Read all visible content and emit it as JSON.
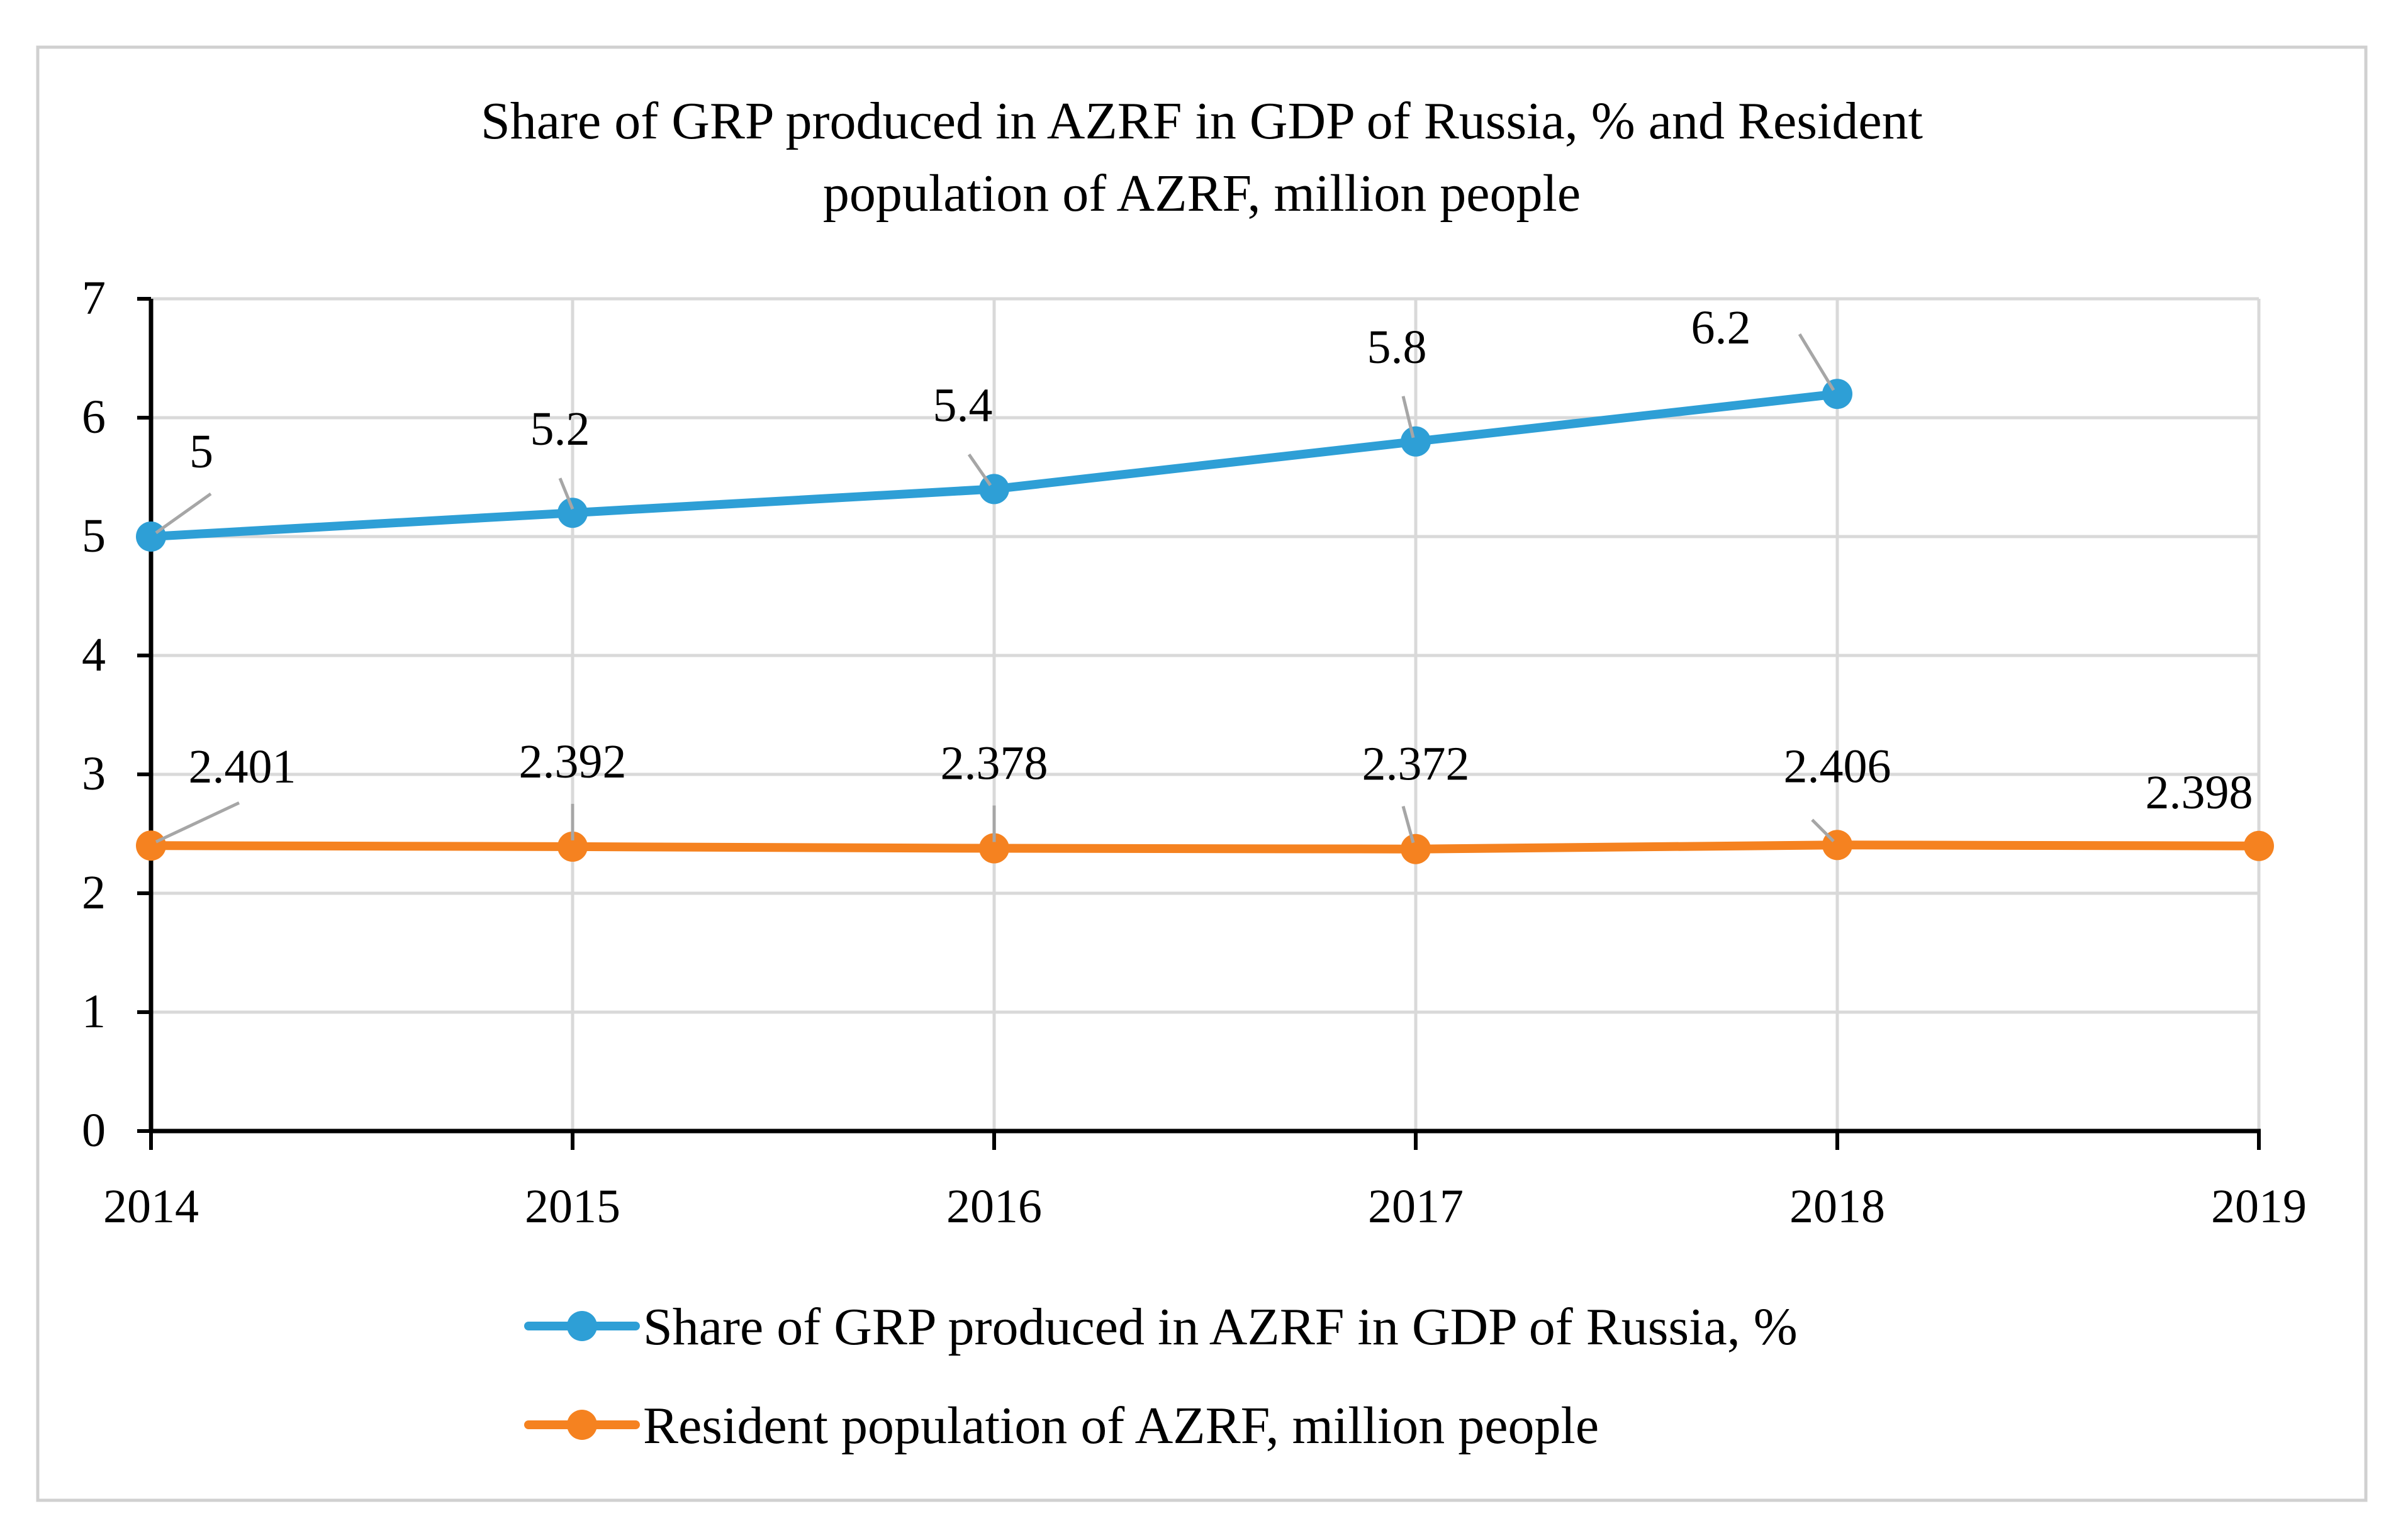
{
  "chart_data": {
    "type": "line",
    "title": "Share of GRP produced in AZRF in GDP of Russia, % and Resident population of AZRF, million people",
    "title_lines": [
      "Share of GRP produced in AZRF in GDP of Russia, % and Resident",
      "population of AZRF, million people"
    ],
    "x": [
      "2014",
      "2015",
      "2016",
      "2017",
      "2018",
      "2019"
    ],
    "y_ticks": [
      "0",
      "1",
      "2",
      "3",
      "4",
      "5",
      "6",
      "7"
    ],
    "ylim": [
      0,
      7
    ],
    "grid": true,
    "legend_position": "bottom",
    "series": [
      {
        "name": "Share of GRP produced in AZRF in GDP of Russia, %",
        "color": "#2e9fd6",
        "values": [
          5,
          5.2,
          5.4,
          5.8,
          6.2,
          null
        ],
        "labels": [
          "5",
          "5.2",
          "5.4",
          "5.8",
          "6.2",
          ""
        ]
      },
      {
        "name": "Resident population of AZRF, million people",
        "color": "#f58220",
        "values": [
          2.401,
          2.392,
          2.378,
          2.372,
          2.406,
          2.398
        ],
        "labels": [
          "2.401",
          "2.392",
          "2.378",
          "2.372",
          "2.406",
          "2.398"
        ]
      }
    ]
  }
}
